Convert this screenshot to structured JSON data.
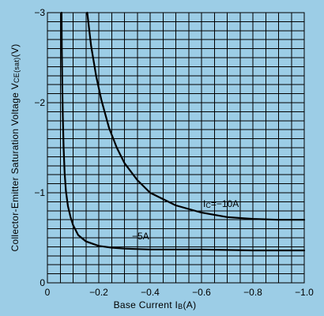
{
  "chart_data": {
    "type": "line",
    "xlabel": "Base Current IB(A)",
    "ylabel": "Collector-Emitter Saturation Voltage VCE(sat)(V)",
    "xlim": [
      0,
      -1.0
    ],
    "ylim": [
      0,
      -3
    ],
    "x_ticks": [
      "0",
      "−0.2",
      "−0.4",
      "−0.6",
      "−0.8",
      "−1.0"
    ],
    "y_ticks": [
      "0",
      "−1",
      "−2",
      "−3"
    ],
    "grid": true,
    "series": [
      {
        "name": "IC=−10A",
        "x": [
          -0.155,
          -0.17,
          -0.19,
          -0.21,
          -0.24,
          -0.27,
          -0.3,
          -0.35,
          -0.4,
          -0.5,
          -0.6,
          -0.7,
          -0.8,
          -0.9,
          -1.0
        ],
        "y": [
          -3.0,
          -2.63,
          -2.29,
          -2.03,
          -1.72,
          -1.5,
          -1.33,
          -1.14,
          -1.0,
          -0.86,
          -0.78,
          -0.73,
          -0.71,
          -0.7,
          -0.7
        ]
      },
      {
        "name": "−5A",
        "x": [
          -0.055,
          -0.056,
          -0.058,
          -0.06,
          -0.063,
          -0.067,
          -0.072,
          -0.08,
          -0.09,
          -0.1,
          -0.12,
          -0.15,
          -0.2,
          -0.25,
          -0.3,
          -0.4,
          -0.5,
          -0.6,
          -0.8,
          -1.0
        ],
        "y": [
          -3.0,
          -2.6,
          -2.2,
          -1.85,
          -1.5,
          -1.22,
          -1.02,
          -0.85,
          -0.73,
          -0.64,
          -0.53,
          -0.46,
          -0.41,
          -0.39,
          -0.38,
          -0.37,
          -0.37,
          -0.37,
          -0.36,
          -0.36
        ]
      }
    ],
    "annotations": [
      {
        "text": "IC=−10A",
        "x": -0.65,
        "y": -0.85
      },
      {
        "text": "−5A",
        "x": -0.27,
        "y": -0.5
      }
    ]
  },
  "labels": {
    "xlabel_main": "Base Current I",
    "xlabel_sub": "B",
    "xlabel_unit": "(A)",
    "ylabel_main": "Collector-Emitter Saturation Voltage V",
    "ylabel_sub": "CE(sat)",
    "ylabel_unit": "(V)",
    "anno1_main": "I",
    "anno1_sub": "C",
    "anno1_rest": "=−10A",
    "anno2": "−5A"
  }
}
